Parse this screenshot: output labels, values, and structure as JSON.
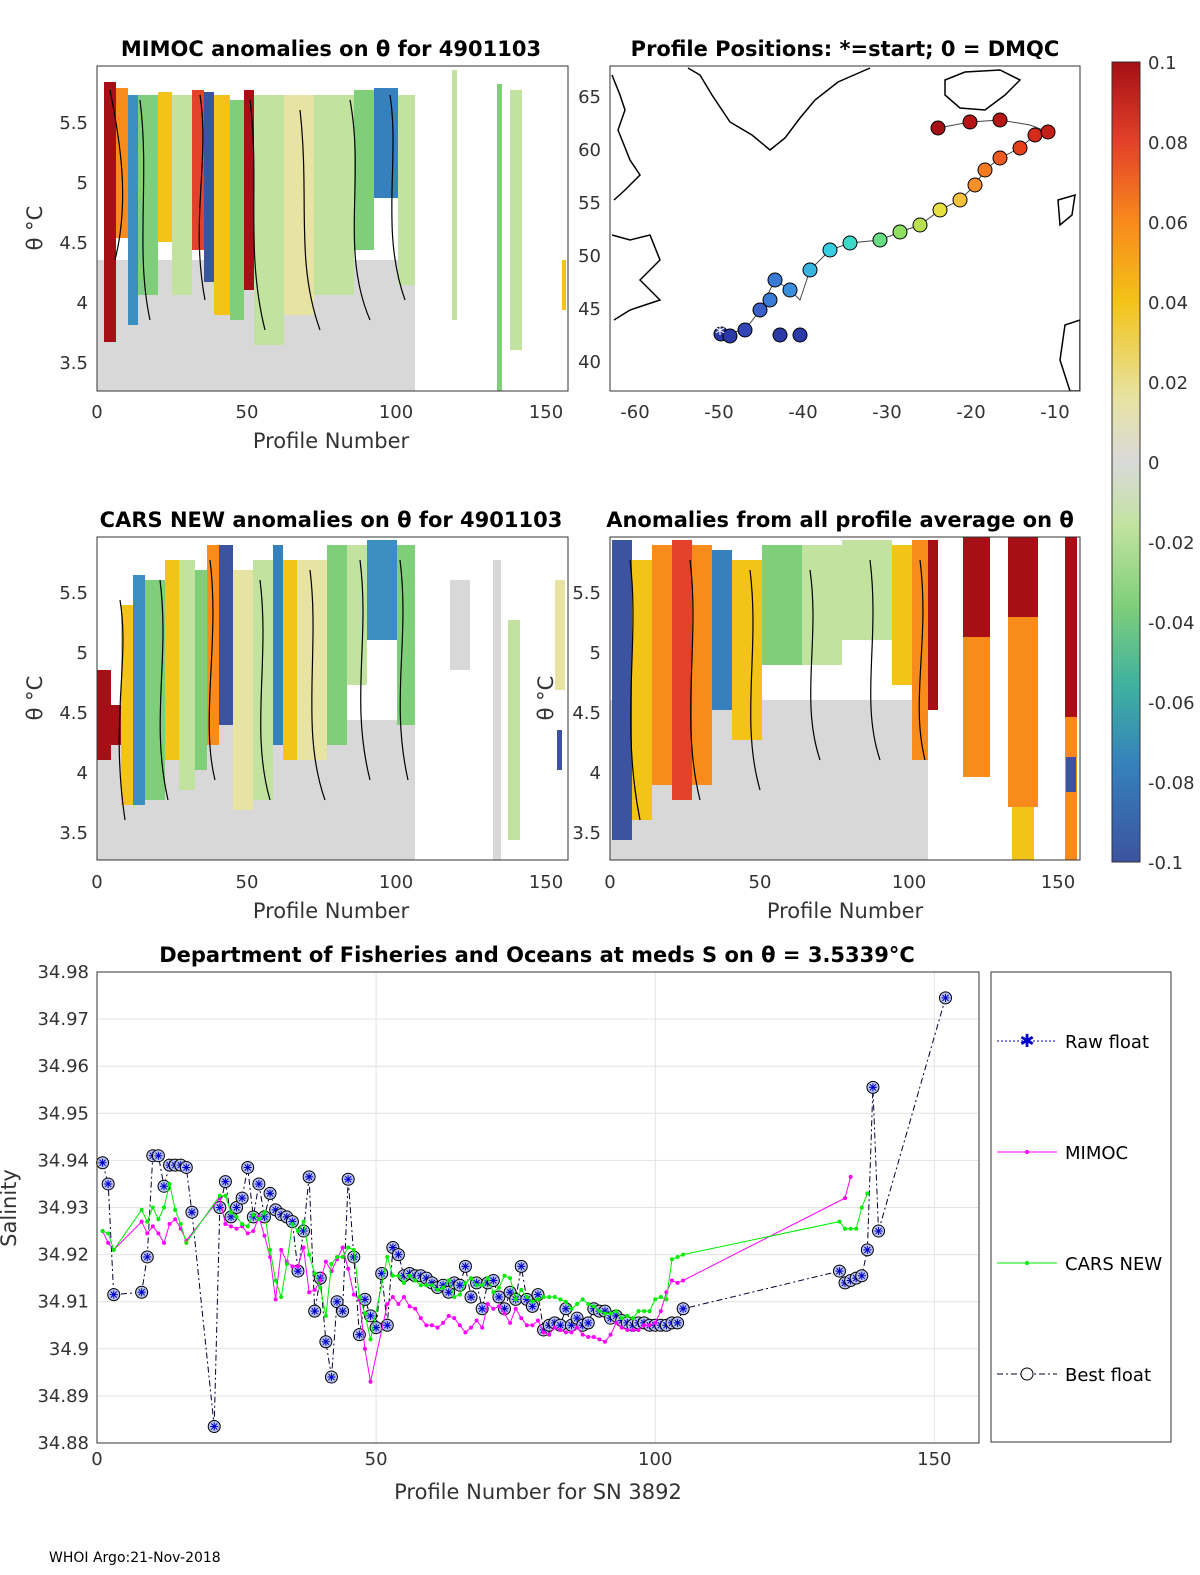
{
  "footer": "WHOI Argo:21-Nov-2018",
  "colors": {
    "red": "#a50f15",
    "orange": "#f46d0f",
    "yellow": "#f0c419",
    "lightgreen": "#c3e29a",
    "gray": "#d8d8d8",
    "teal": "#2a9d8f",
    "blue": "#3b5ba9",
    "mimoc": "#ff00ff",
    "cars": "#00ee00",
    "best": "#000033",
    "raw": "#0000cc"
  },
  "panel1": {
    "title": "MIMOC anomalies on θ  for 4901103",
    "xlabel": "Profile Number",
    "ylabel": "θ °C",
    "xticks": [
      "0",
      "50",
      "100",
      "150"
    ],
    "yticks": [
      "3.5",
      "4",
      "4.5",
      "5",
      "5.5"
    ]
  },
  "panel2": {
    "title": "Profile Positions: *=start; 0 = DMQC",
    "xticks": [
      "-60",
      "-50",
      "-40",
      "-30",
      "-20",
      "-10"
    ],
    "yticks": [
      "40",
      "45",
      "50",
      "55",
      "60",
      "65"
    ]
  },
  "panel3": {
    "title": "CARS NEW anomalies on θ for 4901103",
    "xlabel": "Profile Number",
    "ylabel": "θ °C",
    "xticks": [
      "0",
      "50",
      "100",
      "150"
    ],
    "yticks": [
      "3.5",
      "4",
      "4.5",
      "5",
      "5.5"
    ]
  },
  "panel4": {
    "title": "Anomalies from all profile average on θ",
    "xlabel": "Profile Number",
    "ylabel": "θ °C",
    "xticks": [
      "0",
      "50",
      "100",
      "150"
    ],
    "yticks": [
      "3.5",
      "4",
      "4.5",
      "5",
      "5.5"
    ]
  },
  "colorbar": {
    "ticks": [
      "0.1",
      "0.08",
      "0.06",
      "0.04",
      "0.02",
      "0",
      "-0.02",
      "-0.04",
      "-0.06",
      "-0.08",
      "-0.1"
    ]
  },
  "chart_data": {
    "type": "line",
    "title": "Department of Fisheries and Oceans at meds S on θ = 3.5339°C",
    "xlabel": "Profile Number for SN 3892",
    "ylabel": "Salinity",
    "xlim": [
      0,
      158
    ],
    "ylim": [
      34.88,
      34.98
    ],
    "xticks": [
      "0",
      "50",
      "100",
      "150"
    ],
    "yticks": [
      "34.88",
      "34.89",
      "34.9",
      "34.91",
      "34.92",
      "34.93",
      "34.94",
      "34.95",
      "34.96",
      "34.97",
      "34.98"
    ],
    "legend": [
      "Raw float",
      "MIMOC",
      "CARS NEW",
      "Best float"
    ],
    "series": [
      {
        "name": "Best float",
        "x": [
          1,
          2,
          3,
          8,
          9,
          10,
          11,
          12,
          13,
          14,
          15,
          16,
          17,
          21,
          22,
          23,
          24,
          25,
          26,
          27,
          28,
          29,
          30,
          31,
          32,
          33,
          34,
          35,
          36,
          37,
          38,
          39,
          40,
          41,
          42,
          43,
          44,
          45,
          46,
          47,
          48,
          49,
          50,
          51,
          52,
          53,
          54,
          55,
          56,
          57,
          58,
          59,
          60,
          61,
          62,
          63,
          64,
          65,
          66,
          67,
          68,
          69,
          70,
          71,
          72,
          73,
          74,
          75,
          76,
          77,
          78,
          79,
          80,
          81,
          82,
          83,
          84,
          85,
          86,
          87,
          88,
          89,
          90,
          91,
          92,
          93,
          94,
          95,
          96,
          97,
          98,
          99,
          100,
          101,
          102,
          103,
          104,
          105,
          133,
          134,
          135,
          136,
          137,
          138,
          139,
          140,
          152
        ],
        "y": [
          34.9395,
          34.935,
          34.9115,
          34.912,
          34.9195,
          34.941,
          34.941,
          34.9345,
          34.939,
          34.939,
          34.939,
          34.9385,
          34.929,
          34.8835,
          34.93,
          34.9355,
          34.928,
          34.93,
          34.932,
          34.9385,
          34.928,
          34.935,
          34.928,
          34.933,
          34.9295,
          34.9285,
          34.928,
          34.927,
          34.9165,
          34.925,
          34.9365,
          34.908,
          34.915,
          34.9015,
          34.894,
          34.91,
          34.908,
          34.936,
          34.9195,
          34.903,
          34.9105,
          34.907,
          34.9045,
          34.916,
          34.905,
          34.9215,
          34.92,
          34.9155,
          34.916,
          34.9155,
          34.9155,
          34.915,
          34.914,
          34.913,
          34.9135,
          34.912,
          34.914,
          34.9135,
          34.9175,
          34.911,
          34.914,
          34.9085,
          34.914,
          34.9145,
          34.911,
          34.9085,
          34.912,
          34.9105,
          34.9175,
          34.9105,
          34.909,
          34.9115,
          34.904,
          34.905,
          34.9055,
          34.905,
          34.9085,
          34.905,
          34.9065,
          34.905,
          34.9055,
          34.9085,
          34.908,
          34.908,
          34.9065,
          34.907,
          34.906,
          34.9055,
          34.905,
          34.9055,
          34.9055,
          34.905,
          34.905,
          34.905,
          34.905,
          34.9055,
          34.9055,
          34.9085,
          34.9165,
          34.914,
          34.9145,
          34.915,
          34.9155,
          34.921,
          34.9555,
          34.925,
          34.9745
        ]
      },
      {
        "name": "MIMOC",
        "x": [
          1,
          2,
          3,
          8,
          9,
          10,
          11,
          12,
          13,
          14,
          15,
          16,
          22,
          23,
          24,
          25,
          26,
          27,
          28,
          29,
          30,
          31,
          32,
          33,
          34,
          35,
          36,
          37,
          38,
          39,
          40,
          41,
          42,
          43,
          44,
          45,
          46,
          47,
          48,
          49,
          52,
          53,
          54,
          55,
          56,
          57,
          58,
          59,
          60,
          61,
          62,
          63,
          64,
          65,
          66,
          67,
          68,
          69,
          70,
          71,
          72,
          73,
          74,
          75,
          76,
          77,
          78,
          79,
          80,
          81,
          82,
          83,
          84,
          85,
          86,
          87,
          88,
          89,
          90,
          91,
          92,
          93,
          94,
          95,
          96,
          97,
          98,
          99,
          100,
          101,
          102,
          103,
          104,
          105,
          134,
          135
        ],
        "y": [
          34.925,
          34.9225,
          34.921,
          34.927,
          34.9245,
          34.926,
          34.9245,
          34.9225,
          34.9265,
          34.9275,
          34.9255,
          34.923,
          34.932,
          34.9265,
          34.926,
          34.9255,
          34.926,
          34.9245,
          34.925,
          34.928,
          34.924,
          34.9195,
          34.9105,
          34.921,
          34.9185,
          34.9175,
          34.9175,
          34.9215,
          34.912,
          34.9125,
          34.9145,
          34.9185,
          34.9165,
          34.919,
          34.9215,
          34.917,
          34.9115,
          34.9105,
          34.9,
          34.893,
          34.9095,
          34.911,
          34.9095,
          34.911,
          34.909,
          34.9085,
          34.9065,
          34.905,
          34.905,
          34.9045,
          34.9055,
          34.907,
          34.9065,
          34.905,
          34.9035,
          34.9045,
          34.906,
          34.9045,
          34.9095,
          34.9085,
          34.909,
          34.9075,
          34.9055,
          34.9085,
          34.9065,
          34.905,
          34.905,
          34.906,
          34.9035,
          34.903,
          34.9045,
          34.904,
          34.9035,
          34.9035,
          34.9045,
          34.903,
          34.9025,
          34.9025,
          34.902,
          34.9015,
          34.903,
          34.9055,
          34.9045,
          34.904,
          34.904,
          34.904,
          34.905,
          34.905,
          34.9055,
          34.908,
          34.912,
          34.9145,
          34.914,
          34.9145,
          34.932,
          34.9365
        ]
      },
      {
        "name": "CARS NEW",
        "x": [
          1,
          2,
          3,
          8,
          9,
          10,
          11,
          12,
          13,
          14,
          15,
          16,
          22,
          23,
          24,
          25,
          26,
          27,
          28,
          29,
          30,
          31,
          32,
          33,
          34,
          35,
          36,
          37,
          38,
          39,
          40,
          41,
          42,
          43,
          44,
          45,
          46,
          47,
          48,
          49,
          52,
          53,
          54,
          55,
          56,
          57,
          58,
          59,
          60,
          61,
          62,
          63,
          64,
          65,
          66,
          67,
          68,
          69,
          70,
          71,
          72,
          73,
          74,
          75,
          76,
          77,
          78,
          79,
          80,
          81,
          82,
          83,
          84,
          85,
          86,
          87,
          88,
          89,
          90,
          91,
          92,
          93,
          94,
          95,
          96,
          97,
          98,
          99,
          100,
          101,
          102,
          103,
          104,
          105,
          133,
          134,
          135,
          136,
          137,
          138
        ],
        "y": [
          34.925,
          34.9245,
          34.921,
          34.9295,
          34.927,
          34.93,
          34.9275,
          34.93,
          34.935,
          34.9295,
          34.9265,
          34.9225,
          34.9325,
          34.9325,
          34.929,
          34.928,
          34.9265,
          34.926,
          34.9285,
          34.9275,
          34.929,
          34.921,
          34.9145,
          34.911,
          34.918,
          34.9265,
          34.925,
          34.927,
          34.92,
          34.916,
          34.913,
          34.907,
          34.918,
          34.9195,
          34.9195,
          34.9215,
          34.921,
          34.911,
          34.9075,
          34.902,
          34.9195,
          34.9155,
          34.9155,
          34.914,
          34.9155,
          34.9145,
          34.9135,
          34.9135,
          34.9135,
          34.9125,
          34.913,
          34.9145,
          34.911,
          34.9115,
          34.914,
          34.915,
          34.9135,
          34.9135,
          34.915,
          34.912,
          34.913,
          34.9155,
          34.915,
          34.9105,
          34.9125,
          34.911,
          34.91,
          34.9105,
          34.911,
          34.911,
          34.911,
          34.9105,
          34.91,
          34.9085,
          34.9095,
          34.9105,
          34.9095,
          34.909,
          34.908,
          34.9075,
          34.9075,
          34.908,
          34.9065,
          34.907,
          34.9065,
          34.908,
          34.908,
          34.908,
          34.9105,
          34.911,
          34.9105,
          34.919,
          34.9195,
          34.92,
          34.927,
          34.9255,
          34.9255,
          34.9255,
          34.93,
          34.933
        ]
      }
    ]
  }
}
